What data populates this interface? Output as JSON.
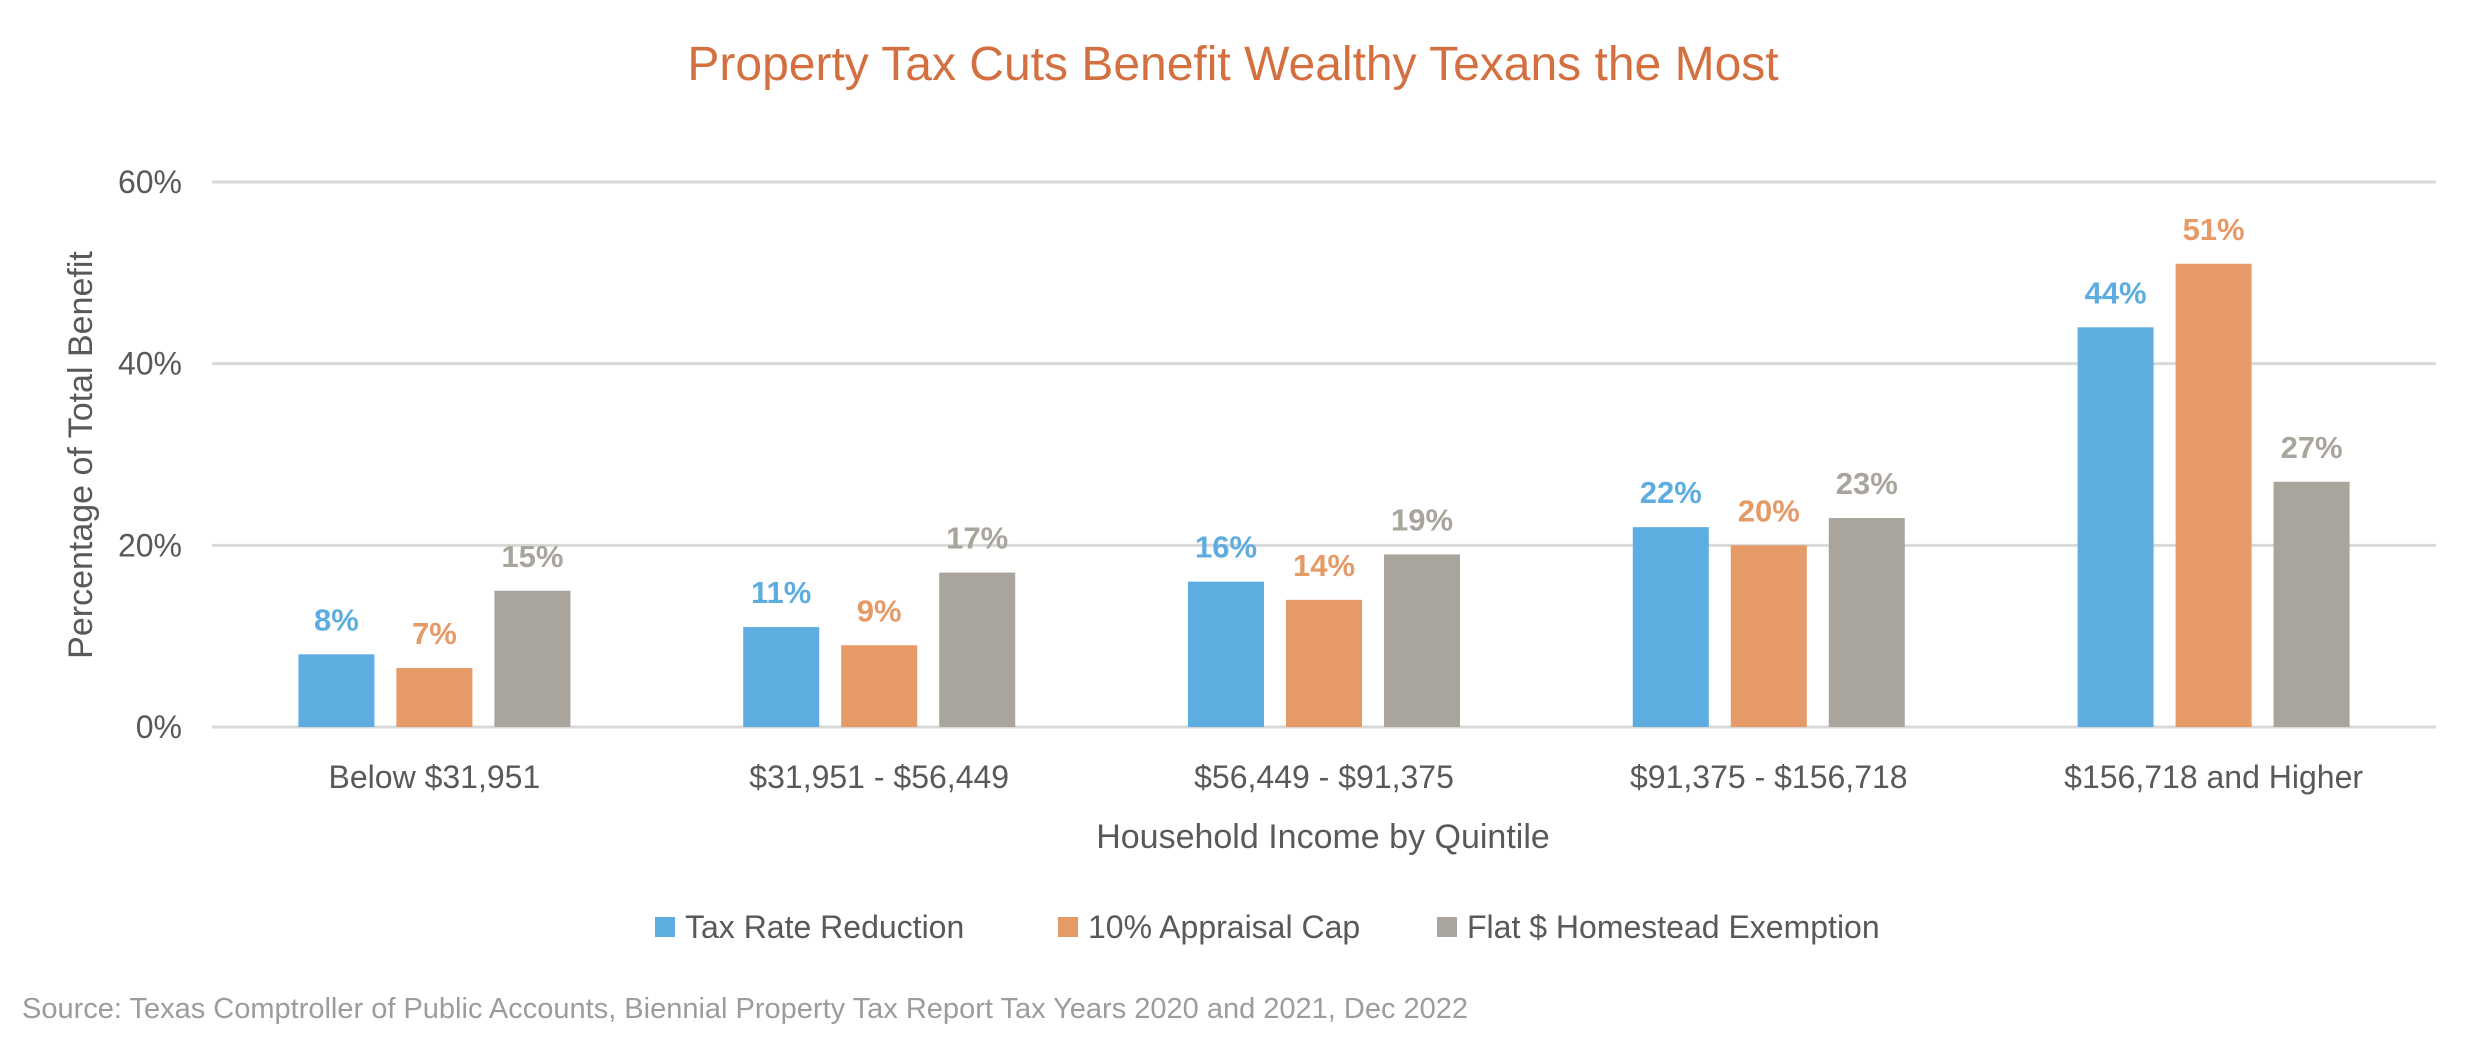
{
  "chart_data": {
    "type": "bar",
    "title": "Property Tax Cuts Benefit Wealthy Texans the Most",
    "xlabel": "Household Income by Quintile",
    "ylabel": "Percentage of Total Benefit",
    "ylim": [
      0,
      60
    ],
    "yticks": [
      0,
      20,
      40,
      60
    ],
    "ytick_labels": [
      "0%",
      "20%",
      "40%",
      "60%"
    ],
    "grid": true,
    "legend_position": "bottom",
    "categories": [
      "Below $31,951",
      "$31,951 - $56,449",
      "$56,449 - $91,375",
      "$91,375 - $156,718",
      "$156,718 and Higher"
    ],
    "series": [
      {
        "name": "Tax Rate Reduction",
        "color": "#5dade0",
        "values": [
          8,
          11,
          16,
          22,
          44
        ],
        "labels": [
          "8%",
          "11%",
          "16%",
          "22%",
          "44%"
        ]
      },
      {
        "name": "10% Appraisal Cap",
        "color": "#e59a67",
        "values": [
          6.5,
          9,
          14,
          20,
          51
        ],
        "labels": [
          "7%",
          "9%",
          "14%",
          "20%",
          "51%"
        ]
      },
      {
        "name": "Flat $ Homestead Exemption",
        "color": "#a9a59d",
        "values": [
          15,
          17,
          19,
          23,
          27
        ],
        "labels": [
          "15%",
          "17%",
          "19%",
          "23%",
          "27%"
        ]
      }
    ],
    "source": "Source: Texas Comptroller of Public Accounts, Biennial Property Tax Report  Tax Years 2020 and 2021, Dec 2022"
  },
  "colors": {
    "title": "#d4703f",
    "axis_text": "#595959",
    "gridline": "#d9d9d9",
    "source_text": "#9c9c9c"
  }
}
